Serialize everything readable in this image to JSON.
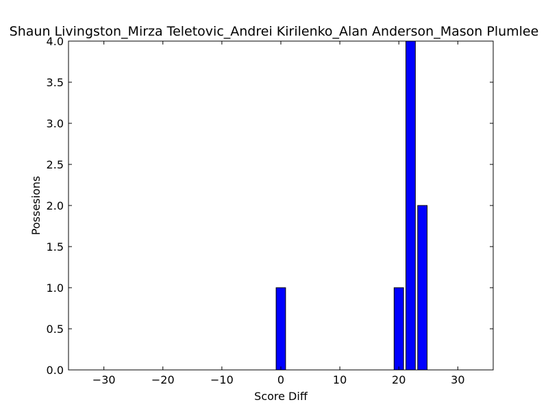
{
  "chart_data": {
    "type": "bar",
    "title": "Shaun Livingston_Mirza Teletovic_Andrei Kirilenko_Alan Anderson_Mason Plumlee",
    "xlabel": "Score Diff",
    "ylabel": "Possesions",
    "xlim": [
      -36,
      36
    ],
    "ylim": [
      0,
      4
    ],
    "xticks": [
      -30,
      -20,
      -10,
      0,
      10,
      20,
      30
    ],
    "xtick_labels": [
      "−30",
      "−20",
      "−10",
      "0",
      "10",
      "20",
      "30"
    ],
    "yticks": [
      0.0,
      0.5,
      1.0,
      1.5,
      2.0,
      2.5,
      3.0,
      3.5,
      4.0
    ],
    "ytick_labels": [
      "0.0",
      "0.5",
      "1.0",
      "1.5",
      "2.0",
      "2.5",
      "3.0",
      "3.5",
      "4.0"
    ],
    "bar_width": 1.6,
    "bars": [
      {
        "x": 0,
        "value": 1
      },
      {
        "x": 20,
        "value": 1
      },
      {
        "x": 22,
        "value": 4
      },
      {
        "x": 24,
        "value": 2
      }
    ],
    "bar_color": "#0000ff",
    "grid": false,
    "legend": "none"
  }
}
